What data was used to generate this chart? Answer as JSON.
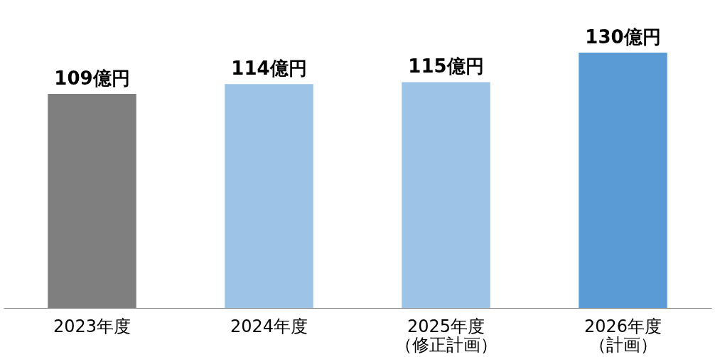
{
  "chart_data": {
    "type": "bar",
    "categories": [
      "2023年度",
      "2024年度",
      "2025年度（修正計画）",
      "2026年度（計画）"
    ],
    "values": [
      109,
      114,
      115,
      130
    ],
    "colors": [
      "#7f7f7f",
      "#9dc3e6",
      "#9dc3e6",
      "#5b9bd5"
    ],
    "value_labels": [
      "109億円",
      "114億円",
      "115億円",
      "130億円"
    ],
    "tick_labels": "x",
    "grid": false,
    "legend": false
  }
}
